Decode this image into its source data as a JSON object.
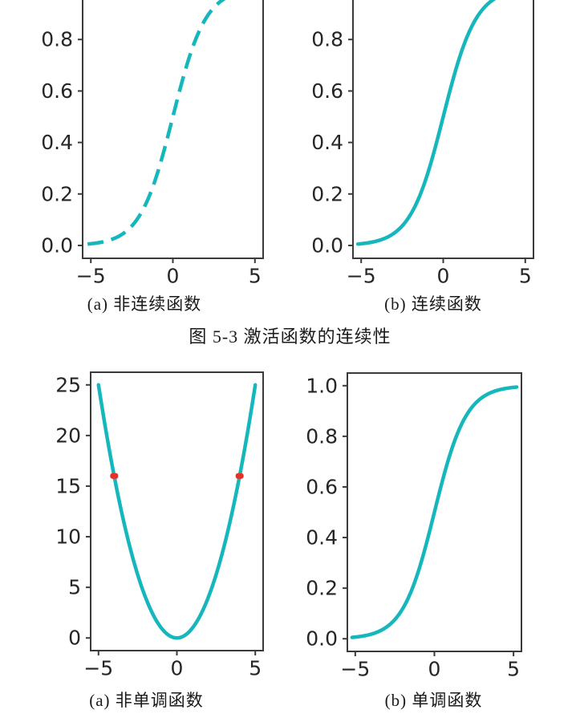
{
  "page": {
    "background": "#ffffff"
  },
  "colors": {
    "curve": "#15b7bd",
    "marker": "#e43228",
    "axis": "#3a3a3a",
    "tick_label": "#262626",
    "caption_text": "#1a1a1a"
  },
  "captions": {
    "fig_top_a": "(a) 非连续函数",
    "fig_top_b": "(b) 连续函数",
    "fig_top_title": "图 5-3  激活函数的连续性",
    "fig_bottom_a": "(a) 非单调函数",
    "fig_bottom_b": "(b) 单调函数"
  },
  "chart_data": [
    {
      "id": "discontinuous-sigmoid",
      "panel": "top-left",
      "type": "line",
      "function": "sigmoid",
      "line_style": "dashed",
      "x_data_range": [
        -5.2,
        5.2
      ],
      "xlim": [
        -5.5,
        5.5
      ],
      "ylim": [
        -0.05,
        1.05
      ],
      "x_ticks": [
        {
          "v": -5,
          "label": "−5"
        },
        {
          "v": 0,
          "label": "0"
        },
        {
          "v": 5,
          "label": "5"
        }
      ],
      "y_ticks": [
        {
          "v": 0.0,
          "label": "0.0"
        },
        {
          "v": 0.2,
          "label": "0.2"
        },
        {
          "v": 0.4,
          "label": "0.4"
        },
        {
          "v": 0.6,
          "label": "0.6"
        },
        {
          "v": 0.8,
          "label": "0.8"
        }
      ],
      "caption": "(a) 非连续函数",
      "grid": false,
      "legend": false
    },
    {
      "id": "continuous-sigmoid",
      "panel": "top-right",
      "type": "line",
      "function": "sigmoid",
      "line_style": "solid",
      "x_data_range": [
        -5.2,
        5.2
      ],
      "xlim": [
        -5.5,
        5.5
      ],
      "ylim": [
        -0.05,
        1.05
      ],
      "x_ticks": [
        {
          "v": -5,
          "label": "−5"
        },
        {
          "v": 0,
          "label": "0"
        },
        {
          "v": 5,
          "label": "5"
        }
      ],
      "y_ticks": [
        {
          "v": 0.0,
          "label": "0.0"
        },
        {
          "v": 0.2,
          "label": "0.2"
        },
        {
          "v": 0.4,
          "label": "0.4"
        },
        {
          "v": 0.6,
          "label": "0.6"
        },
        {
          "v": 0.8,
          "label": "0.8"
        }
      ],
      "caption": "(b) 连续函数",
      "grid": false,
      "legend": false
    },
    {
      "id": "nonmonotonic-parabola",
      "panel": "bottom-left",
      "type": "line",
      "function": "parabola",
      "line_style": "solid",
      "x_data_range": [
        -5,
        5
      ],
      "xlim": [
        -5.5,
        5.5
      ],
      "ylim": [
        -1.25,
        26.25
      ],
      "x_ticks": [
        {
          "v": -5,
          "label": "−5"
        },
        {
          "v": 0,
          "label": "0"
        },
        {
          "v": 5,
          "label": "5"
        }
      ],
      "y_ticks": [
        {
          "v": 0,
          "label": "0"
        },
        {
          "v": 5,
          "label": "5"
        },
        {
          "v": 10,
          "label": "10"
        },
        {
          "v": 15,
          "label": "15"
        },
        {
          "v": 20,
          "label": "20"
        },
        {
          "v": 25,
          "label": "25"
        }
      ],
      "markers": {
        "shape": "dot",
        "color": "#e43228",
        "points": [
          [
            -4,
            16
          ],
          [
            4,
            16
          ]
        ]
      },
      "caption": "(a) 非单调函数",
      "grid": false,
      "legend": false
    },
    {
      "id": "monotonic-sigmoid",
      "panel": "bottom-right",
      "type": "line",
      "function": "sigmoid",
      "line_style": "solid",
      "x_data_range": [
        -5.2,
        5.2
      ],
      "xlim": [
        -5.5,
        5.5
      ],
      "ylim": [
        -0.05,
        1.05
      ],
      "x_ticks": [
        {
          "v": -5,
          "label": "−5"
        },
        {
          "v": 0,
          "label": "0"
        },
        {
          "v": 5,
          "label": "5"
        }
      ],
      "y_ticks": [
        {
          "v": 0.0,
          "label": "0.0"
        },
        {
          "v": 0.2,
          "label": "0.2"
        },
        {
          "v": 0.4,
          "label": "0.4"
        },
        {
          "v": 0.6,
          "label": "0.6"
        },
        {
          "v": 0.8,
          "label": "0.8"
        },
        {
          "v": 1.0,
          "label": "1.0"
        }
      ],
      "caption": "(b) 单调函数",
      "grid": false,
      "legend": false
    }
  ]
}
